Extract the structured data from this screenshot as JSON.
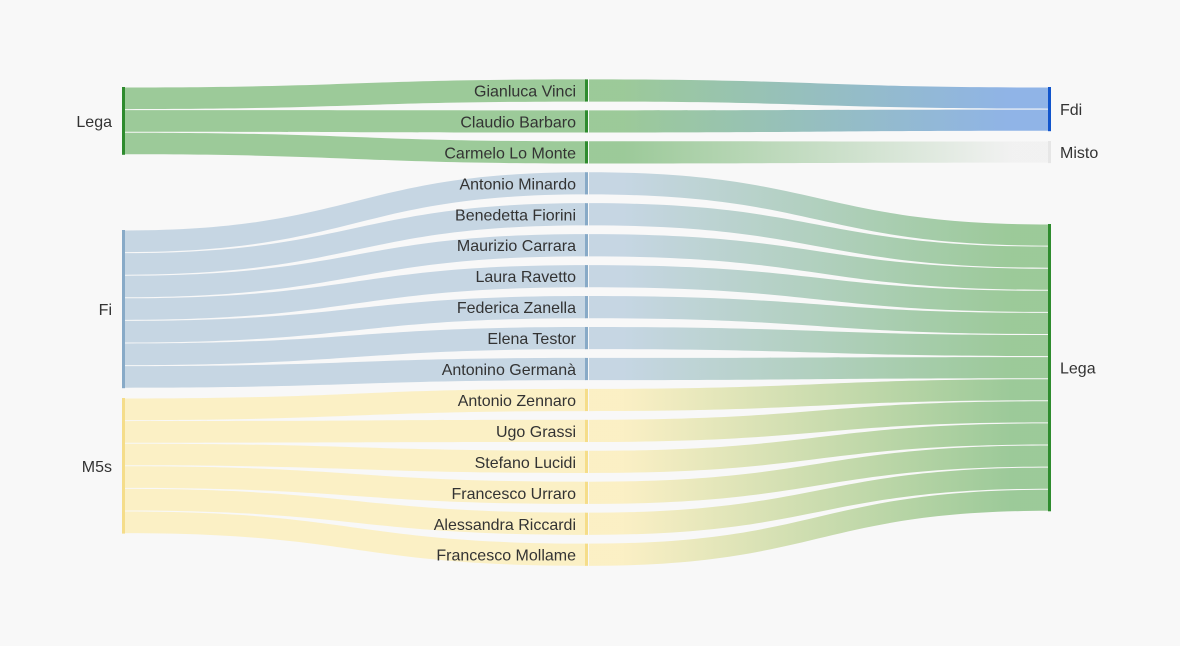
{
  "chart_data": {
    "type": "sankey",
    "colors": {
      "Lega": "#2e8b2e",
      "Lega_light": "#97c794",
      "Fi": "#88aac7",
      "Fi_light": "#c3d4e2",
      "M5s": "#f5dd8a",
      "M5s_light": "#fbefc2",
      "Fdi": "#1155cc",
      "Fdi_light": "#8ab0e6",
      "Misto": "#e6e6e6",
      "Misto_light": "#f1f1f1"
    },
    "source_nodes": [
      {
        "id": "src-lega",
        "label": "Lega",
        "party": "Lega"
      },
      {
        "id": "src-fi",
        "label": "Fi",
        "party": "Fi"
      },
      {
        "id": "src-m5s",
        "label": "M5s",
        "party": "M5s"
      }
    ],
    "people": [
      {
        "name": "Gianluca Vinci",
        "from": "Lega",
        "to": "Fdi"
      },
      {
        "name": "Claudio Barbaro",
        "from": "Lega",
        "to": "Fdi"
      },
      {
        "name": "Carmelo Lo Monte",
        "from": "Lega",
        "to": "Misto"
      },
      {
        "name": "Antonio Minardo",
        "from": "Fi",
        "to": "Lega"
      },
      {
        "name": "Benedetta Fiorini",
        "from": "Fi",
        "to": "Lega"
      },
      {
        "name": "Maurizio Carrara",
        "from": "Fi",
        "to": "Lega"
      },
      {
        "name": "Laura Ravetto",
        "from": "Fi",
        "to": "Lega"
      },
      {
        "name": "Federica Zanella",
        "from": "Fi",
        "to": "Lega"
      },
      {
        "name": "Elena Testor",
        "from": "Fi",
        "to": "Lega"
      },
      {
        "name": "Antonino Germanà",
        "from": "Fi",
        "to": "Lega"
      },
      {
        "name": "Antonio Zennaro",
        "from": "M5s",
        "to": "Lega"
      },
      {
        "name": "Ugo Grassi",
        "from": "M5s",
        "to": "Lega"
      },
      {
        "name": "Stefano Lucidi",
        "from": "M5s",
        "to": "Lega"
      },
      {
        "name": "Francesco Urraro",
        "from": "M5s",
        "to": "Lega"
      },
      {
        "name": "Alessandra Riccardi",
        "from": "M5s",
        "to": "Lega"
      },
      {
        "name": "Francesco Mollame",
        "from": "M5s",
        "to": "Lega"
      }
    ],
    "target_nodes": [
      {
        "id": "dst-fdi",
        "label": "Fdi",
        "party": "Fdi"
      },
      {
        "id": "dst-misto",
        "label": "Misto",
        "party": "Misto"
      },
      {
        "id": "dst-lega",
        "label": "Lega",
        "party": "Lega"
      }
    ],
    "flow_value": 1
  }
}
